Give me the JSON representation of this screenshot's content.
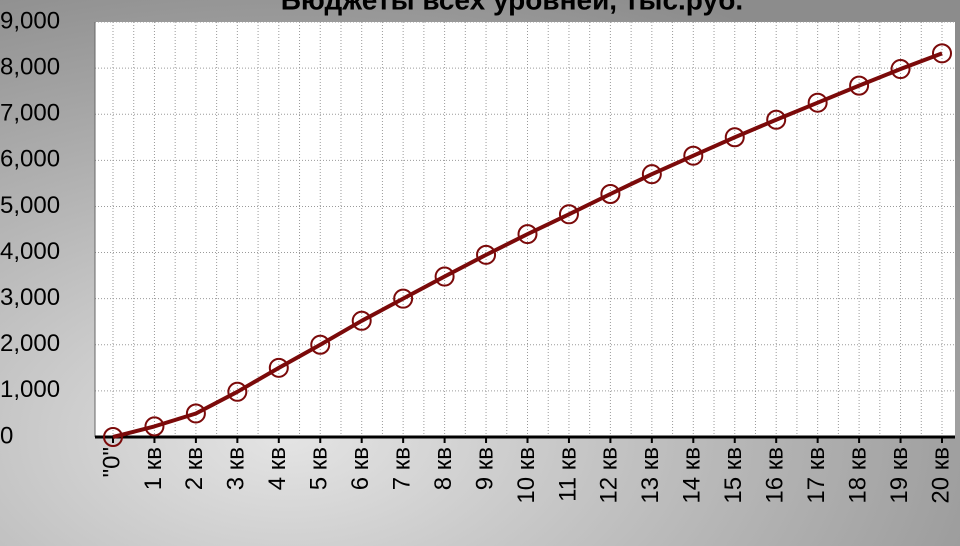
{
  "chart_data": {
    "type": "line",
    "title": "Бюджеты всех уровней, тыс.руб.",
    "categories": [
      "\"0\"",
      "1 кв",
      "2 кв",
      "3 кв",
      "4 кв",
      "5 кв",
      "6 кв",
      "7 кв",
      "8 кв",
      "9 кв",
      "10 кв",
      "11 кв",
      "12 кв",
      "13 кв",
      "14 кв",
      "15 кв",
      "16 кв",
      "17 кв",
      "18 кв",
      "19 кв",
      "20 кв"
    ],
    "series": [
      {
        "name": "Бюджеты всех уровней",
        "color": "#7b0a0a",
        "values": [
          0,
          230,
          510,
          980,
          1500,
          2000,
          2520,
          3000,
          3480,
          3950,
          4400,
          4830,
          5270,
          5700,
          6100,
          6500,
          6880,
          7250,
          7620,
          7980,
          8320
        ]
      }
    ],
    "ylim": [
      0,
      9000
    ],
    "yticks": [
      0,
      {
        "value": 1000,
        "label": "1,000"
      },
      {
        "value": 2000,
        "label": "2,000"
      },
      {
        "value": 3000,
        "label": "3,000"
      },
      {
        "value": 4000,
        "label": "4,000"
      },
      {
        "value": 5000,
        "label": "5,000"
      },
      {
        "value": 6000,
        "label": "6,000"
      },
      {
        "value": 7000,
        "label": "7,000"
      },
      {
        "value": 8000,
        "label": "8,000"
      },
      {
        "value": 9000,
        "label": "9,000"
      }
    ],
    "grid": true
  }
}
